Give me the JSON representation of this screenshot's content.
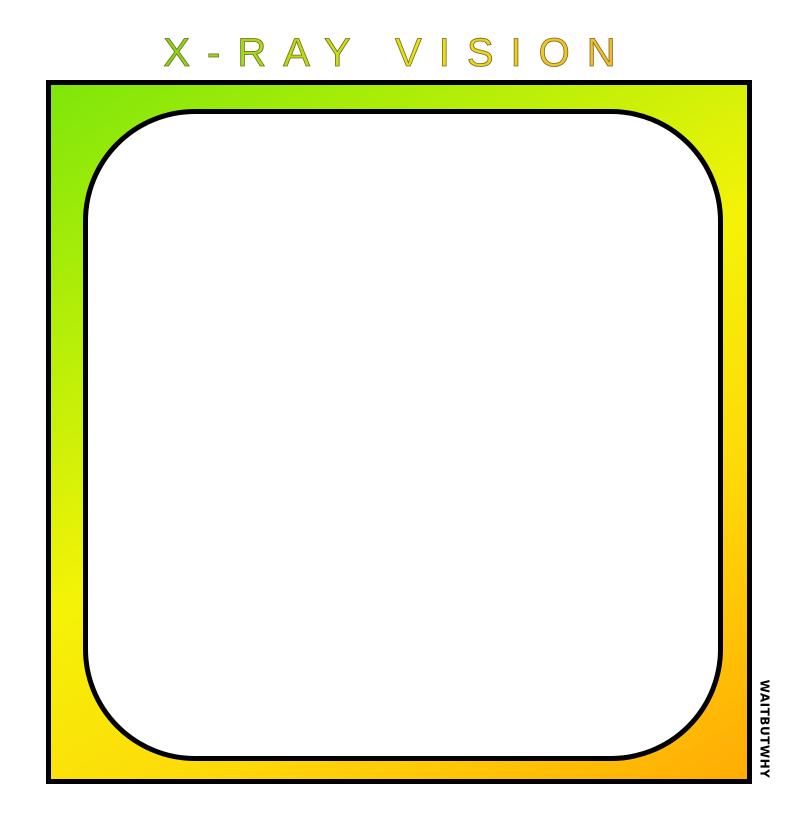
{
  "title": "X-RAY VISION",
  "watermark": "WAITBUTWHY",
  "colors": {
    "title_start": "#7cd81f",
    "title_mid": "#e8e21a",
    "title_end": "#f3b53a",
    "frame_top_left": "#7ee60a",
    "frame_middle": "#f4f307",
    "frame_bottom_right": "#ffac04",
    "outline": "#000000",
    "window": "#ffffff"
  }
}
